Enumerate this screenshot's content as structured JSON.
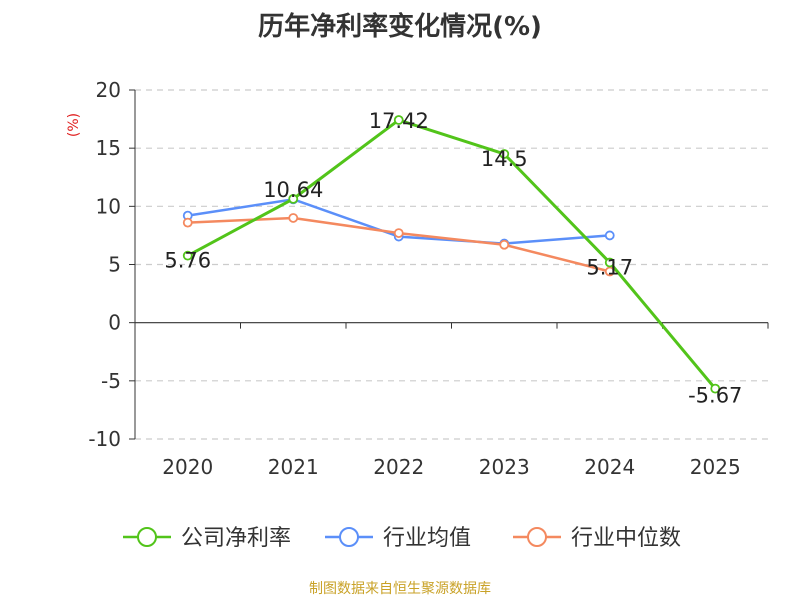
{
  "chart_data": {
    "type": "line",
    "title": "历年净利率变化情况(%)",
    "ylabel": "(%)",
    "categories": [
      "2020",
      "2021",
      "2022",
      "2023",
      "2024",
      "2025"
    ],
    "ylim": [
      -10,
      20
    ],
    "yticks": [
      20,
      15,
      10,
      5,
      0,
      -5,
      -10
    ],
    "grid": true,
    "legend_position": "bottom",
    "series": [
      {
        "name": "公司净利率",
        "color": "#52c41a",
        "values": [
          5.76,
          10.64,
          17.42,
          14.5,
          5.17,
          -5.67
        ],
        "labels": [
          "5.76",
          "10.64",
          "17.42",
          "14.5",
          "5.17",
          "-5.67"
        ]
      },
      {
        "name": "行业均值",
        "color": "#5b8ff9",
        "values": [
          9.2,
          10.6,
          7.4,
          6.8,
          7.5,
          null
        ]
      },
      {
        "name": "行业中位数",
        "color": "#f4895f",
        "values": [
          8.6,
          9.0,
          7.7,
          6.7,
          4.4,
          null
        ]
      }
    ]
  },
  "source_note": "制图数据来自恒生聚源数据库"
}
